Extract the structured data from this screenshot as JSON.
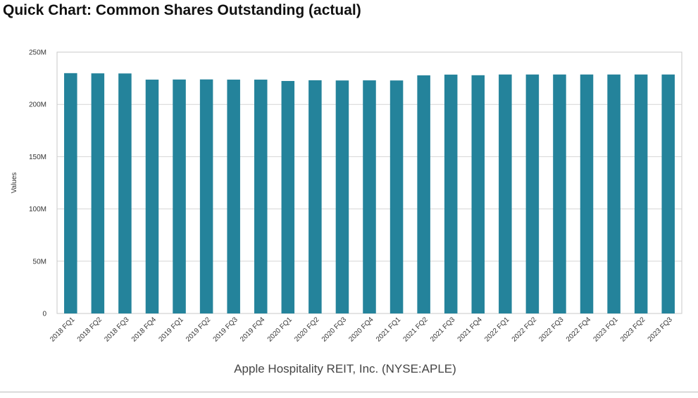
{
  "chart_data": {
    "type": "bar",
    "title": "Quick Chart: Common Shares Outstanding (actual)",
    "xlabel": "Apple Hospitality REIT, Inc. (NYSE:APLE)",
    "ylabel": "Values",
    "ylim": [
      0,
      250
    ],
    "yticks": [
      0,
      50,
      100,
      150,
      200,
      250
    ],
    "ytick_labels": [
      "0",
      "50M",
      "100M",
      "150M",
      "200M",
      "250M"
    ],
    "grid": true,
    "bar_color": "#24839b",
    "categories": [
      "2018 FQ1",
      "2018 FQ2",
      "2018 FQ3",
      "2018 FQ4",
      "2019 FQ1",
      "2019 FQ2",
      "2019 FQ3",
      "2019 FQ4",
      "2020 FQ1",
      "2020 FQ2",
      "2020 FQ3",
      "2020 FQ4",
      "2021 FQ1",
      "2021 FQ2",
      "2021 FQ3",
      "2021 FQ4",
      "2022 FQ1",
      "2022 FQ2",
      "2022 FQ3",
      "2022 FQ4",
      "2023 FQ1",
      "2023 FQ2",
      "2023 FQ3"
    ],
    "values": [
      229.9,
      229.7,
      229.6,
      223.7,
      223.8,
      223.9,
      223.7,
      223.7,
      222.4,
      223.1,
      222.9,
      223.0,
      222.9,
      227.8,
      228.5,
      227.9,
      228.6,
      228.6,
      228.6,
      228.6,
      228.6,
      228.6,
      228.6
    ]
  }
}
